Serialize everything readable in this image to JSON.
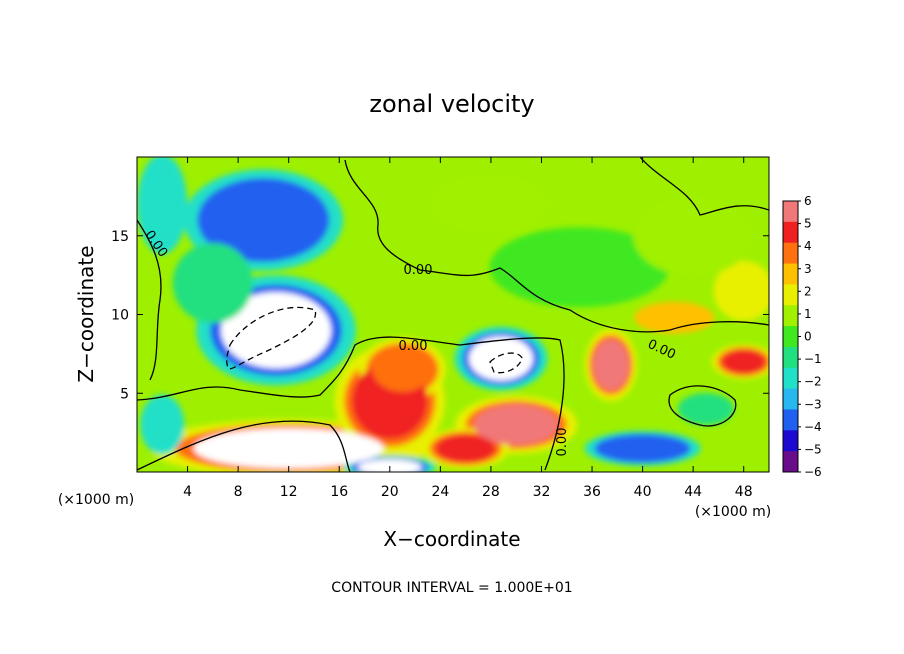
{
  "chart_data": {
    "type": "heatmap",
    "title": "zonal velocity",
    "xlabel": "X−coordinate",
    "ylabel": "Z−coordinate",
    "x_unit_label": "(×1000 m)",
    "z_unit_label": "(×1000 m)",
    "xlim": [
      0,
      50
    ],
    "ylim": [
      0,
      20
    ],
    "x_ticks": [
      4,
      8,
      12,
      16,
      20,
      24,
      28,
      32,
      36,
      40,
      44,
      48
    ],
    "y_ticks": [
      5,
      10,
      15
    ],
    "colorbar": {
      "ticks": [
        "6",
        "5",
        "4",
        "3",
        "2",
        "1",
        "0",
        "−1",
        "−2",
        "−3",
        "−4",
        "−5",
        "−6"
      ],
      "range": [
        -6,
        6
      ],
      "colors": [
        "#6a0d8a",
        "#1c0ad0",
        "#2060f0",
        "#28b8f0",
        "#20e0c8",
        "#20e080",
        "#40e820",
        "#a0f000",
        "#e8f000",
        "#ffc000",
        "#ff7010",
        "#f02020",
        "#f07878"
      ]
    },
    "contour_labels": [
      "0.00",
      "0.00",
      "0.00",
      "0.00",
      "0.00"
    ],
    "contour_interval_note": "CONTOUR INTERVAL = 1.000E+01",
    "features": [
      {
        "x": 11,
        "z": 9,
        "value": -9,
        "note": "strong westward core (white, saturated)"
      },
      {
        "x": 10,
        "z": 16,
        "value": -4
      },
      {
        "x": 12,
        "z": 1.5,
        "value": 8,
        "note": "strong eastward jet near surface (saturated)"
      },
      {
        "x": 20,
        "z": 4.5,
        "value": 5
      },
      {
        "x": 21,
        "z": 6.5,
        "value": 4
      },
      {
        "x": 28.8,
        "z": 7.2,
        "value": -8
      },
      {
        "x": 30,
        "z": 3,
        "value": 6
      },
      {
        "x": 26,
        "z": 1.5,
        "value": 5
      },
      {
        "x": 37.5,
        "z": 6.8,
        "value": 6
      },
      {
        "x": 20,
        "z": 0.3,
        "value": -8
      },
      {
        "x": 42.5,
        "z": 9.8,
        "value": 3
      },
      {
        "x": 48,
        "z": 11.5,
        "value": 2
      },
      {
        "x": 45,
        "z": 4,
        "value": -1
      },
      {
        "x": 48,
        "z": 7,
        "value": 5
      },
      {
        "x": 28,
        "z": 17,
        "value": 1
      },
      {
        "x": 35,
        "z": 13,
        "value": 0
      },
      {
        "x": 2,
        "z": 17,
        "value": -2
      },
      {
        "x": 6,
        "z": 12,
        "value": -1
      },
      {
        "x": 2,
        "z": 3,
        "value": -2
      },
      {
        "x": 44,
        "z": 15,
        "value": 1
      },
      {
        "x": 40,
        "z": 1.5,
        "value": -4
      }
    ]
  }
}
